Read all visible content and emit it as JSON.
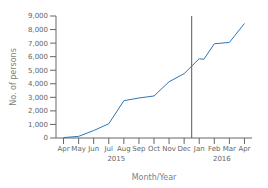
{
  "chart_data": {
    "type": "line",
    "x": [
      0,
      1,
      2,
      3,
      4,
      5,
      6,
      7,
      8,
      9,
      9.3,
      10,
      11,
      12
    ],
    "values": [
      30,
      120,
      550,
      1050,
      2750,
      2950,
      3100,
      4150,
      4750,
      5850,
      5800,
      6950,
      7050,
      8450
    ],
    "color": "#2e75b6",
    "xlabel": "Month/Year",
    "ylabel": "No. of persons",
    "xlim": [
      -0.5,
      12.5
    ],
    "xticks": [
      {
        "value": 0,
        "label": "Apr"
      },
      {
        "value": 1,
        "label": "May"
      },
      {
        "value": 2,
        "label": "Jun"
      },
      {
        "value": 3,
        "label": "Jul"
      },
      {
        "value": 4,
        "label": "Aug"
      },
      {
        "value": 5,
        "label": "Sep"
      },
      {
        "value": 6,
        "label": "Oct"
      },
      {
        "value": 7,
        "label": "Nov"
      },
      {
        "value": 8,
        "label": "Dec"
      },
      {
        "value": 9,
        "label": "Jan"
      },
      {
        "value": 10,
        "label": "Feb"
      },
      {
        "value": 11,
        "label": "Mar"
      },
      {
        "value": 12,
        "label": "Apr"
      }
    ],
    "ylim": [
      0,
      9000
    ],
    "yticks": [
      0,
      {
        "value": 1000,
        "label": "1,000"
      },
      {
        "value": 2000,
        "label": "2,000"
      },
      {
        "value": 3000,
        "label": "3,000"
      },
      {
        "value": 4000,
        "label": "4,000"
      },
      {
        "value": 5000,
        "label": "5,000"
      },
      {
        "value": 6000,
        "label": "6,000"
      },
      {
        "value": 7000,
        "label": "7,000"
      },
      {
        "value": 8000,
        "label": "8,000"
      },
      {
        "value": 9000,
        "label": "9,000"
      }
    ],
    "grid": false,
    "annotations": [
      {
        "text": "2015",
        "x": 3.5
      },
      {
        "text": "2016",
        "x": 10.5
      }
    ],
    "vlines": [
      {
        "x": 8.5,
        "color": "#555555"
      }
    ]
  }
}
